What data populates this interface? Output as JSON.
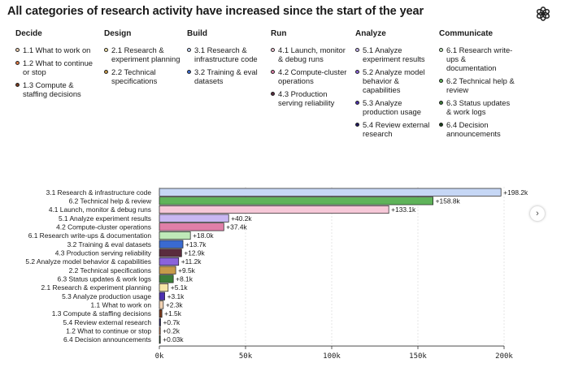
{
  "header": {
    "title": "All categories of research activity have increased since the start of the year",
    "logo_icon": "openai-logo-icon"
  },
  "legend": {
    "columns": [
      {
        "heading": "Decide",
        "items": [
          {
            "label": "1.1 What to work on",
            "color": "#f2d3b4"
          },
          {
            "label": "1.2 What to continue or stop",
            "color": "#e07b46"
          },
          {
            "label": "1.3 Compute & staffing decisions",
            "color": "#7a3a1e"
          }
        ]
      },
      {
        "heading": "Design",
        "items": [
          {
            "label": "2.1 Research & experiment planning",
            "color": "#f6e6a8"
          },
          {
            "label": "2.2 Technical specifications",
            "color": "#c79a4a"
          }
        ]
      },
      {
        "heading": "Build",
        "items": [
          {
            "label": "3.1 Research & infrastructure code",
            "color": "#c6d7f5"
          },
          {
            "label": "3.2 Training & eval datasets",
            "color": "#3a6ad0"
          }
        ]
      },
      {
        "heading": "Run",
        "items": [
          {
            "label": "4.1 Launch, monitor & debug runs",
            "color": "#f6c8d8"
          },
          {
            "label": "4.2 Compute-cluster operations",
            "color": "#e07fa8"
          },
          {
            "label": "4.3 Production serving reliability",
            "color": "#5a2c3e"
          }
        ]
      },
      {
        "heading": "Analyze",
        "items": [
          {
            "label": "5.1 Analyze experiment results",
            "color": "#c9b7f2"
          },
          {
            "label": "5.2 Analyze model behavior & capabilities",
            "color": "#8a63db"
          },
          {
            "label": "5.3 Analyze production usage",
            "color": "#4c2fb0"
          },
          {
            "label": "5.4 Review external research",
            "color": "#1f1760"
          }
        ]
      },
      {
        "heading": "Communicate",
        "items": [
          {
            "label": "6.1 Research write-ups & documentation",
            "color": "#bfe9b8"
          },
          {
            "label": "6.2 Technical help & review",
            "color": "#5fb35a"
          },
          {
            "label": "6.3 Status updates & work logs",
            "color": "#3c7d3a"
          },
          {
            "label": "6.4 Decision announcements",
            "color": "#173f1a"
          }
        ]
      }
    ]
  },
  "nav": {
    "next_icon": "chevron-right-icon",
    "next_glyph": "›"
  },
  "chart_data": {
    "type": "bar",
    "orientation": "horizontal",
    "title": "",
    "xlabel": "",
    "ylabel": "",
    "xlim": [
      0,
      200000
    ],
    "xticks": [
      0,
      50000,
      100000,
      150000,
      200000
    ],
    "xtick_labels": [
      "0k",
      "50k",
      "100k",
      "150k",
      "200k"
    ],
    "grid": true,
    "categories": [
      "3.1 Research & infrastructure code",
      "6.2 Technical help & review",
      "4.1 Launch, monitor & debug runs",
      "5.1 Analyze experiment results",
      "4.2 Compute-cluster operations",
      "6.1 Research write-ups & documentation",
      "3.2 Training & eval datasets",
      "4.3 Production serving reliability",
      "5.2 Analyze model behavior & capabilities",
      "2.2 Technical specifications",
      "6.3 Status updates & work logs",
      "2.1 Research & experiment planning",
      "5.3 Analyze production usage",
      "1.1 What to work on",
      "1.3 Compute & staffing decisions",
      "5.4 Review external research",
      "1.2 What to continue or stop",
      "6.4 Decision announcements"
    ],
    "values": [
      198200,
      158800,
      133100,
      40200,
      37400,
      18000,
      13700,
      12900,
      11200,
      9500,
      8100,
      5100,
      3100,
      2300,
      1500,
      700,
      200,
      30
    ],
    "value_labels": [
      "+198.2k",
      "+158.8k",
      "+133.1k",
      "+40.2k",
      "+37.4k",
      "+18.0k",
      "+13.7k",
      "+12.9k",
      "+11.2k",
      "+9.5k",
      "+8.1k",
      "+5.1k",
      "+3.1k",
      "+2.3k",
      "+1.5k",
      "+0.7k",
      "+0.2k",
      "+0.03k"
    ],
    "colors": [
      "#c6d7f5",
      "#5fb35a",
      "#f6c8d8",
      "#c9b7f2",
      "#e07fa8",
      "#bfe9b8",
      "#3a6ad0",
      "#5a2c3e",
      "#8a63db",
      "#c79a4a",
      "#3c7d3a",
      "#f6e6a8",
      "#4c2fb0",
      "#f2d3b4",
      "#7a3a1e",
      "#1f1760",
      "#e07b46",
      "#173f1a"
    ]
  }
}
